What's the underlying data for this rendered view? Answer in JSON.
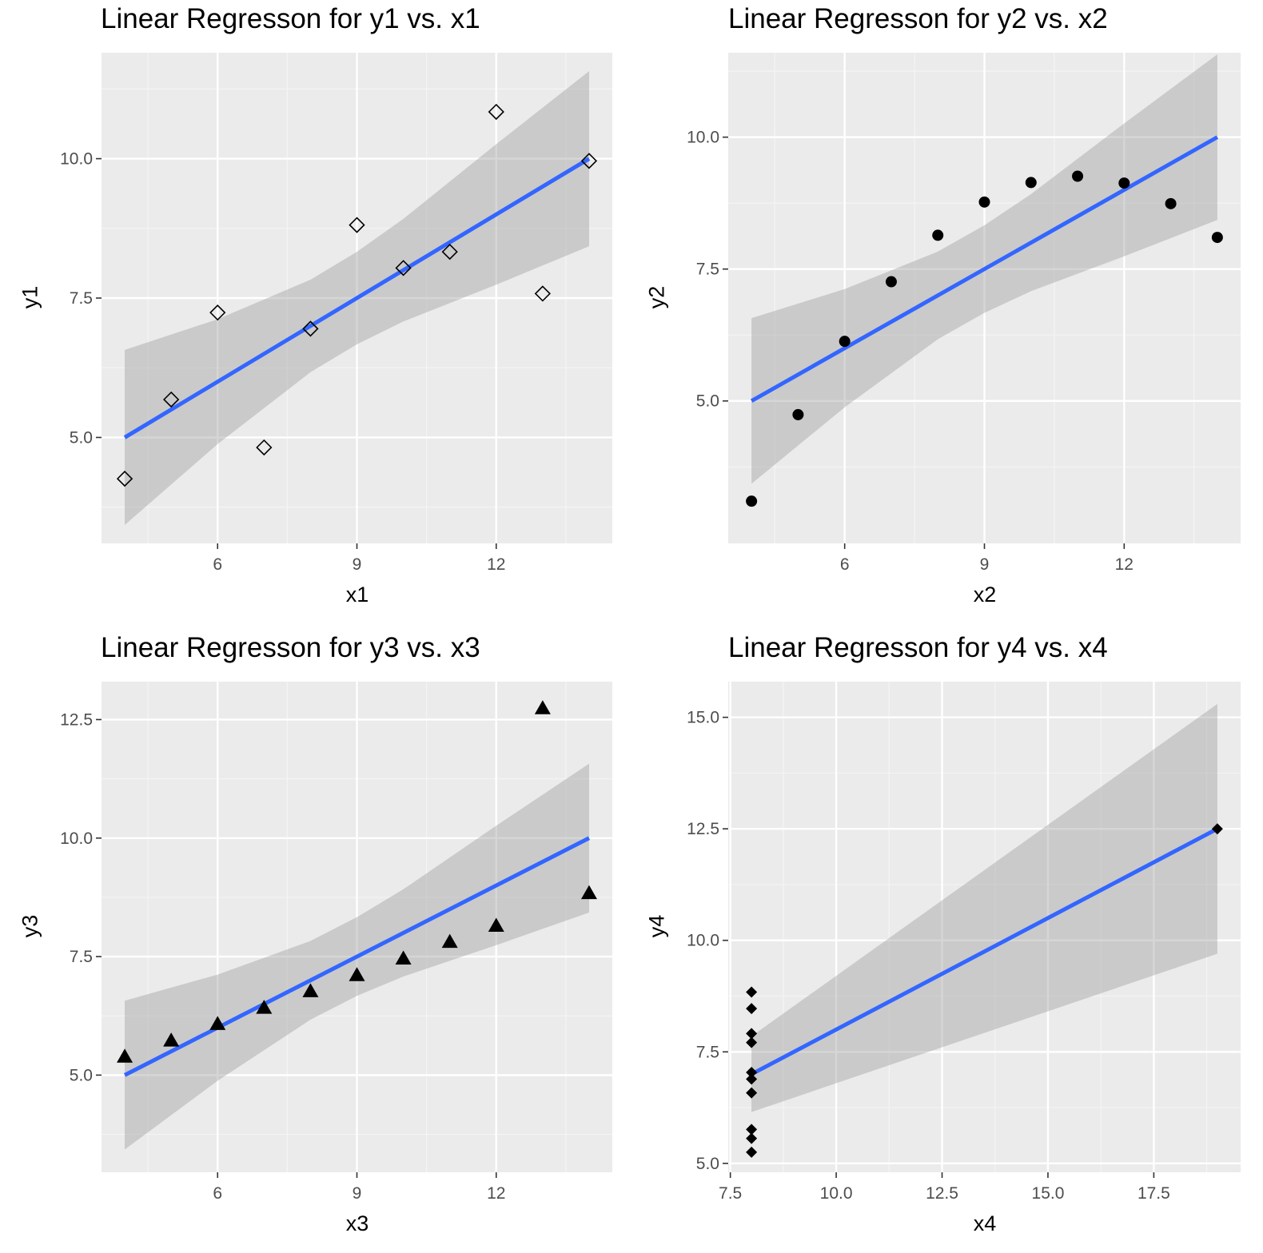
{
  "style": {
    "panel_bg": "#ebebeb",
    "grid_major": "#ffffff",
    "grid_minor": "#f4f4f4",
    "ribbon": "#c4c4c4",
    "line": "#3366ff",
    "point": "#000000",
    "tick_text": "#4d4d4d"
  },
  "chart_data": [
    {
      "type": "scatter",
      "title": "Linear Regresson for y1 vs. x1",
      "xlabel": "x1",
      "ylabel": "y1",
      "marker": "open-diamond",
      "xlim": [
        3.5,
        14.5
      ],
      "ylim": [
        3.1,
        11.9
      ],
      "xticks": [
        6,
        9,
        12
      ],
      "xtick_labels": [
        "6",
        "9",
        "12"
      ],
      "yticks": [
        5.0,
        7.5,
        10.0
      ],
      "ytick_labels": [
        "5.0",
        "7.5",
        "10.0"
      ],
      "grid": true,
      "points": [
        {
          "x": 10,
          "y": 8.04
        },
        {
          "x": 8,
          "y": 6.95
        },
        {
          "x": 13,
          "y": 7.58
        },
        {
          "x": 9,
          "y": 8.81
        },
        {
          "x": 11,
          "y": 8.33
        },
        {
          "x": 14,
          "y": 9.96
        },
        {
          "x": 6,
          "y": 7.24
        },
        {
          "x": 4,
          "y": 4.26
        },
        {
          "x": 12,
          "y": 10.84
        },
        {
          "x": 7,
          "y": 4.82
        },
        {
          "x": 5,
          "y": 5.68
        }
      ],
      "fit": {
        "x": [
          4,
          14
        ],
        "y": [
          5.0,
          10.0
        ]
      },
      "ribbon": {
        "x": [
          4,
          6,
          8,
          9,
          10,
          12,
          14
        ],
        "lower": [
          3.43,
          4.88,
          6.17,
          6.67,
          7.08,
          7.74,
          8.43
        ],
        "upper": [
          6.57,
          7.12,
          7.83,
          8.33,
          8.92,
          10.26,
          11.57
        ]
      }
    },
    {
      "type": "scatter",
      "title": "Linear Regresson for y2 vs. x2",
      "xlabel": "x2",
      "ylabel": "y2",
      "marker": "filled-circle",
      "xlim": [
        3.5,
        14.5
      ],
      "ylim": [
        2.3,
        11.6
      ],
      "xticks": [
        6,
        9,
        12
      ],
      "xtick_labels": [
        "6",
        "9",
        "12"
      ],
      "yticks": [
        5.0,
        7.5,
        10.0
      ],
      "ytick_labels": [
        "5.0",
        "7.5",
        "10.0"
      ],
      "grid": true,
      "points": [
        {
          "x": 10,
          "y": 9.14
        },
        {
          "x": 8,
          "y": 8.14
        },
        {
          "x": 13,
          "y": 8.74
        },
        {
          "x": 9,
          "y": 8.77
        },
        {
          "x": 11,
          "y": 9.26
        },
        {
          "x": 14,
          "y": 8.1
        },
        {
          "x": 6,
          "y": 6.13
        },
        {
          "x": 4,
          "y": 3.1
        },
        {
          "x": 12,
          "y": 9.13
        },
        {
          "x": 7,
          "y": 7.26
        },
        {
          "x": 5,
          "y": 4.74
        }
      ],
      "fit": {
        "x": [
          4,
          14
        ],
        "y": [
          5.0,
          10.0
        ]
      },
      "ribbon": {
        "x": [
          4,
          6,
          8,
          9,
          10,
          12,
          14
        ],
        "lower": [
          3.43,
          4.88,
          6.17,
          6.67,
          7.08,
          7.74,
          8.43
        ],
        "upper": [
          6.57,
          7.12,
          7.83,
          8.33,
          8.92,
          10.26,
          11.57
        ]
      }
    },
    {
      "type": "scatter",
      "title": "Linear Regresson for y3 vs. x3",
      "xlabel": "x3",
      "ylabel": "y3",
      "marker": "filled-triangle",
      "xlim": [
        3.5,
        14.5
      ],
      "ylim": [
        2.95,
        13.3
      ],
      "xticks": [
        6,
        9,
        12
      ],
      "xtick_labels": [
        "6",
        "9",
        "12"
      ],
      "yticks": [
        5.0,
        7.5,
        10.0,
        12.5
      ],
      "ytick_labels": [
        "5.0",
        "7.5",
        "10.0",
        "12.5"
      ],
      "grid": true,
      "points": [
        {
          "x": 10,
          "y": 7.46
        },
        {
          "x": 8,
          "y": 6.77
        },
        {
          "x": 13,
          "y": 12.74
        },
        {
          "x": 9,
          "y": 7.11
        },
        {
          "x": 11,
          "y": 7.81
        },
        {
          "x": 14,
          "y": 8.84
        },
        {
          "x": 6,
          "y": 6.08
        },
        {
          "x": 4,
          "y": 5.39
        },
        {
          "x": 12,
          "y": 8.15
        },
        {
          "x": 7,
          "y": 6.42
        },
        {
          "x": 5,
          "y": 5.73
        }
      ],
      "fit": {
        "x": [
          4,
          14
        ],
        "y": [
          5.0,
          10.0
        ]
      },
      "ribbon": {
        "x": [
          4,
          6,
          8,
          9,
          10,
          12,
          14
        ],
        "lower": [
          3.43,
          4.88,
          6.17,
          6.67,
          7.08,
          7.74,
          8.43
        ],
        "upper": [
          6.57,
          7.12,
          7.83,
          8.33,
          8.92,
          10.26,
          11.57
        ]
      }
    },
    {
      "type": "scatter",
      "title": "Linear Regresson for y4 vs. x4",
      "xlabel": "x4",
      "ylabel": "y4",
      "marker": "filled-diamond",
      "xlim": [
        7.45,
        19.55
      ],
      "ylim": [
        4.8,
        15.8
      ],
      "xticks": [
        7.5,
        10.0,
        12.5,
        15.0,
        17.5
      ],
      "xtick_labels": [
        "7.5",
        "10.0",
        "12.5",
        "15.0",
        "17.5"
      ],
      "yticks": [
        5.0,
        7.5,
        10.0,
        12.5,
        15.0
      ],
      "ytick_labels": [
        "5.0",
        "7.5",
        "10.0",
        "12.5",
        "15.0"
      ],
      "grid": true,
      "points": [
        {
          "x": 8,
          "y": 6.58
        },
        {
          "x": 8,
          "y": 5.76
        },
        {
          "x": 8,
          "y": 7.71
        },
        {
          "x": 8,
          "y": 8.84
        },
        {
          "x": 8,
          "y": 8.47
        },
        {
          "x": 8,
          "y": 7.04
        },
        {
          "x": 8,
          "y": 5.25
        },
        {
          "x": 19,
          "y": 12.5
        },
        {
          "x": 8,
          "y": 5.56
        },
        {
          "x": 8,
          "y": 7.91
        },
        {
          "x": 8,
          "y": 6.89
        }
      ],
      "fit": {
        "x": [
          8,
          19
        ],
        "y": [
          7.0,
          12.5
        ]
      },
      "ribbon": {
        "x": [
          8,
          19
        ],
        "lower": [
          6.15,
          9.7
        ],
        "upper": [
          7.85,
          15.3
        ]
      }
    }
  ]
}
